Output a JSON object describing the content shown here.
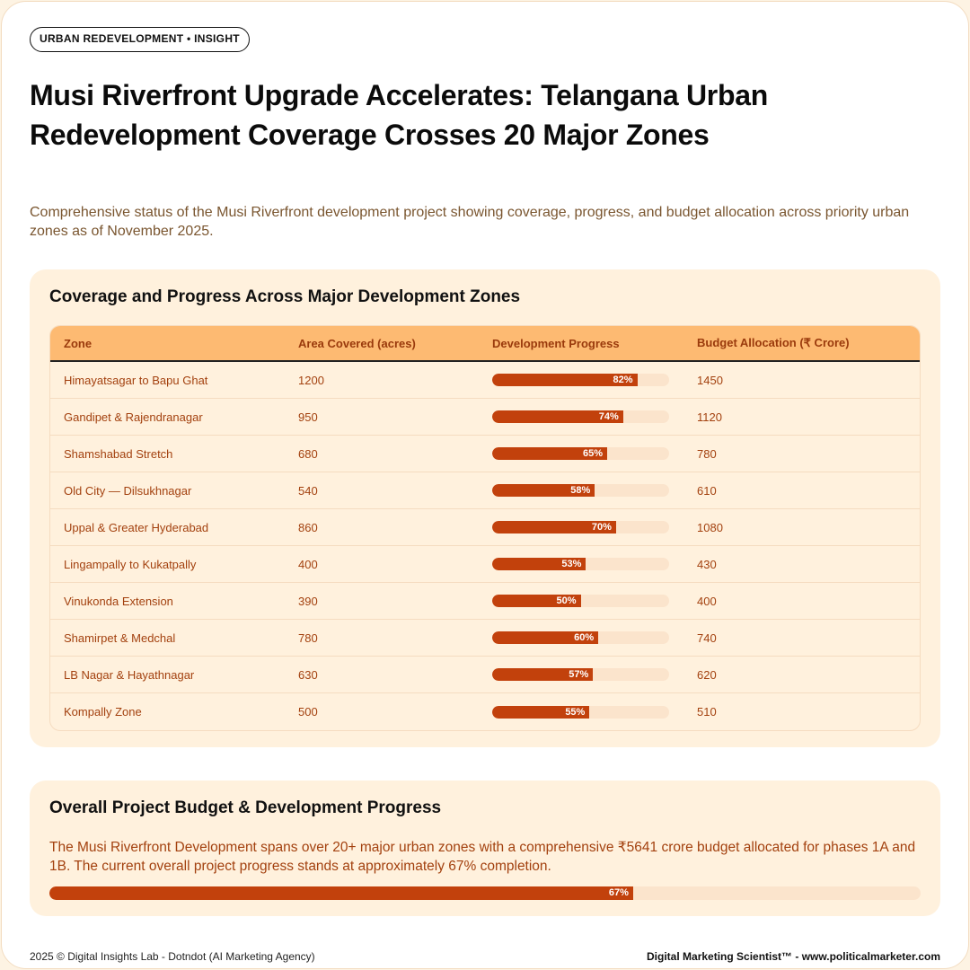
{
  "tag": "URBAN REDEVELOPMENT • INSIGHT",
  "title": "Musi Riverfront Upgrade Accelerates: Telangana Urban Redevelopment Coverage Crosses 20 Major Zones",
  "subtitle": "Comprehensive status of the Musi Riverfront development project showing coverage, progress, and budget allocation across priority urban zones as of November 2025.",
  "table": {
    "title": "Coverage and Progress Across Major Development Zones",
    "headers": [
      "Zone",
      "Area Covered (acres)",
      "Development Progress",
      "Budget Allocation (₹ Crore)"
    ],
    "rows": [
      {
        "zone": "Himayatsagar to Bapu Ghat",
        "area": "1200",
        "progress": 82,
        "progress_label": "82%",
        "budget": "1450"
      },
      {
        "zone": "Gandipet & Rajendranagar",
        "area": "950",
        "progress": 74,
        "progress_label": "74%",
        "budget": "1120"
      },
      {
        "zone": "Shamshabad Stretch",
        "area": "680",
        "progress": 65,
        "progress_label": "65%",
        "budget": "780"
      },
      {
        "zone": "Old City — Dilsukhnagar",
        "area": "540",
        "progress": 58,
        "progress_label": "58%",
        "budget": "610"
      },
      {
        "zone": "Uppal & Greater Hyderabad",
        "area": "860",
        "progress": 70,
        "progress_label": "70%",
        "budget": "1080"
      },
      {
        "zone": "Lingampally to Kukatpally",
        "area": "400",
        "progress": 53,
        "progress_label": "53%",
        "budget": "430"
      },
      {
        "zone": "Vinukonda Extension",
        "area": "390",
        "progress": 50,
        "progress_label": "50%",
        "budget": "400"
      },
      {
        "zone": "Shamirpet & Medchal",
        "area": "780",
        "progress": 60,
        "progress_label": "60%",
        "budget": "740"
      },
      {
        "zone": "LB Nagar & Hayathnagar",
        "area": "630",
        "progress": 57,
        "progress_label": "57%",
        "budget": "620"
      },
      {
        "zone": "Kompally Zone",
        "area": "500",
        "progress": 55,
        "progress_label": "55%",
        "budget": "510"
      }
    ]
  },
  "overall": {
    "title": "Overall Project Budget & Development Progress",
    "description": "The Musi Riverfront Development spans over 20+ major urban zones with a comprehensive ₹5641 crore budget allocated for phases 1A and 1B. The current overall project progress stands at approximately 67% completion.",
    "progress": 67,
    "progress_label": "67%"
  },
  "footer": {
    "left": "2025 © Digital Insights Lab - Dotndot (AI Marketing Agency)",
    "right": "Digital Marketing Scientist™ - www.politicalmarketer.com"
  },
  "colors": {
    "accent": "#c2410c",
    "header": "#fdba72",
    "card": "#fff1dd",
    "track": "#fbe4cc"
  }
}
